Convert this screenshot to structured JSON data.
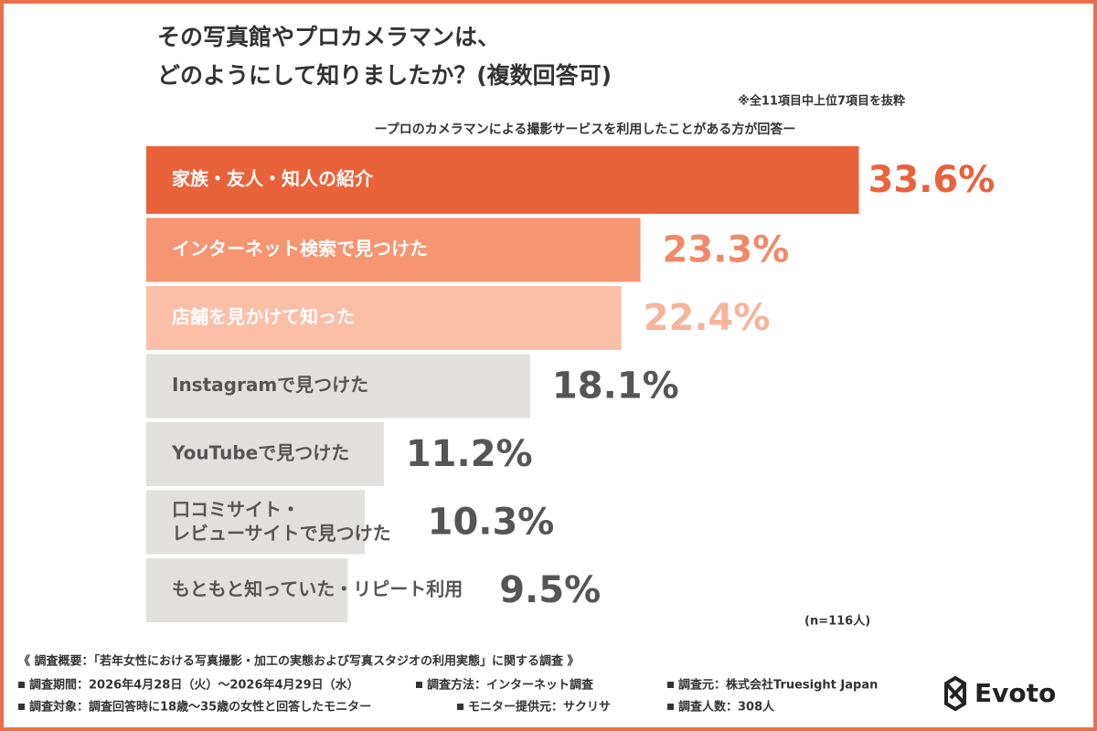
{
  "chart_data": {
    "type": "bar",
    "title": [
      "その写真館やプロカメラマンは、",
      "どのようにして知りましたか？(複数回答可)"
    ],
    "note": "※全11項目中上位7項目を抜粋",
    "subtitle": "ープロのカメラマンによる撮影サービスを利用したことがある方が回答ー",
    "categories": [
      "家族・友人・知人の紹介",
      "インターネット検索で見つけた",
      "店舗を見かけて知った",
      "Instagramで見つけた",
      "YouTubeで見つけた",
      "口コミサイト・\nレビューサイトで見つけた",
      "もともと知っていた・リピート利用"
    ],
    "values": [
      33.6,
      23.3,
      22.4,
      18.1,
      11.2,
      10.3,
      9.5
    ],
    "value_labels": [
      "33.6%",
      "23.3%",
      "22.4%",
      "18.1%",
      "11.2%",
      "10.3%",
      "9.5%"
    ],
    "colors": [
      "#e8623a",
      "#f59572",
      "#fbbfa8",
      "#e2dfdf",
      "#e2dfdf",
      "#e2dfdf",
      "#e2dfdf"
    ],
    "value_label_colors": [
      "#e8623a",
      "#f08a66",
      "#f7b49a",
      "#555555",
      "#555555",
      "#555555",
      "#555555"
    ],
    "sample_note": "(n=116人)"
  },
  "footer": {
    "heading": "《 調査概要：「若年女性における写真撮影・加工の実態および写真スタジオの利用実態」に関する調査 》",
    "items": [
      "調査期間：2026年4月28日（火）〜2026年4月29日（水）",
      "調査方法：インターネット調査",
      "調査元：株式会社Truesight Japan",
      "調査対象：調査回答時に18歳〜35歳の女性と回答したモニター",
      "モニター提供元：サクリサ",
      "調査人数：308人"
    ],
    "logo": "Evoto"
  }
}
